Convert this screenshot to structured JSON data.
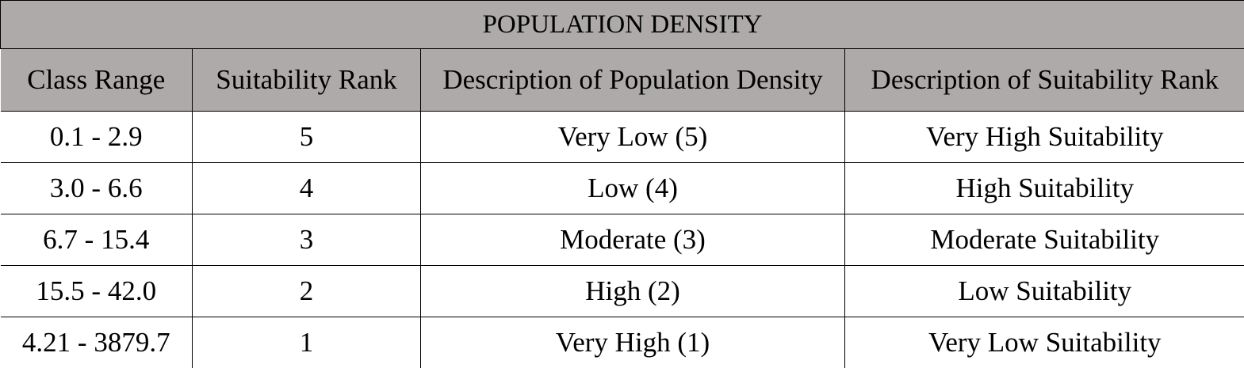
{
  "table": {
    "title": "POPULATION DENSITY",
    "columns": [
      "Class Range",
      "Suitability Rank",
      "Description of Population Density",
      "Description of Suitability Rank"
    ],
    "rows": [
      [
        "0.1 - 2.9",
        "5",
        "Very Low (5)",
        "Very High Suitability"
      ],
      [
        "3.0 - 6.6",
        "4",
        "Low (4)",
        "High Suitability"
      ],
      [
        "6.7 - 15.4",
        "3",
        "Moderate (3)",
        "Moderate Suitability"
      ],
      [
        "15.5 - 42.0",
        "2",
        "High (2)",
        "Low Suitability"
      ],
      [
        "4.21 - 3879.7",
        "1",
        "Very High (1)",
        "Very Low Suitability"
      ]
    ],
    "header_background": "#aeaaaa"
  }
}
